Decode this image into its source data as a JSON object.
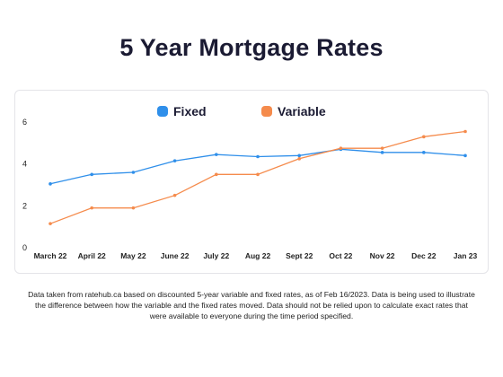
{
  "chart_data": {
    "type": "line",
    "title": "5 Year Mortgage Rates",
    "xlabel": "",
    "ylabel": "",
    "ylim": [
      0,
      6
    ],
    "yticks": [
      0,
      2,
      4,
      6
    ],
    "grid": false,
    "legend_placement": "top-center",
    "categories": [
      "March 22",
      "April 22",
      "May 22",
      "June 22",
      "July 22",
      "Aug 22",
      "Sept 22",
      "Oct 22",
      "Nov 22",
      "Dec 22",
      "Jan 23"
    ],
    "series": [
      {
        "name": "Fixed",
        "color": "#2f8fea",
        "values": [
          3.05,
          3.5,
          3.6,
          4.15,
          4.45,
          4.35,
          4.4,
          4.7,
          4.55,
          4.55,
          4.4
        ]
      },
      {
        "name": "Variable",
        "color": "#f58b4c",
        "values": [
          1.15,
          1.9,
          1.9,
          2.5,
          3.5,
          3.5,
          4.25,
          4.75,
          4.75,
          5.3,
          5.55
        ]
      }
    ]
  },
  "footnote": "Data taken from ratehub.ca based on discounted 5-year variable and fixed rates, as of Feb 16/2023. Data is being used to illustrate the difference between how the variable and the fixed rates moved. Data should not be relied upon to calculate exact rates that were available to everyone during the time period specified."
}
